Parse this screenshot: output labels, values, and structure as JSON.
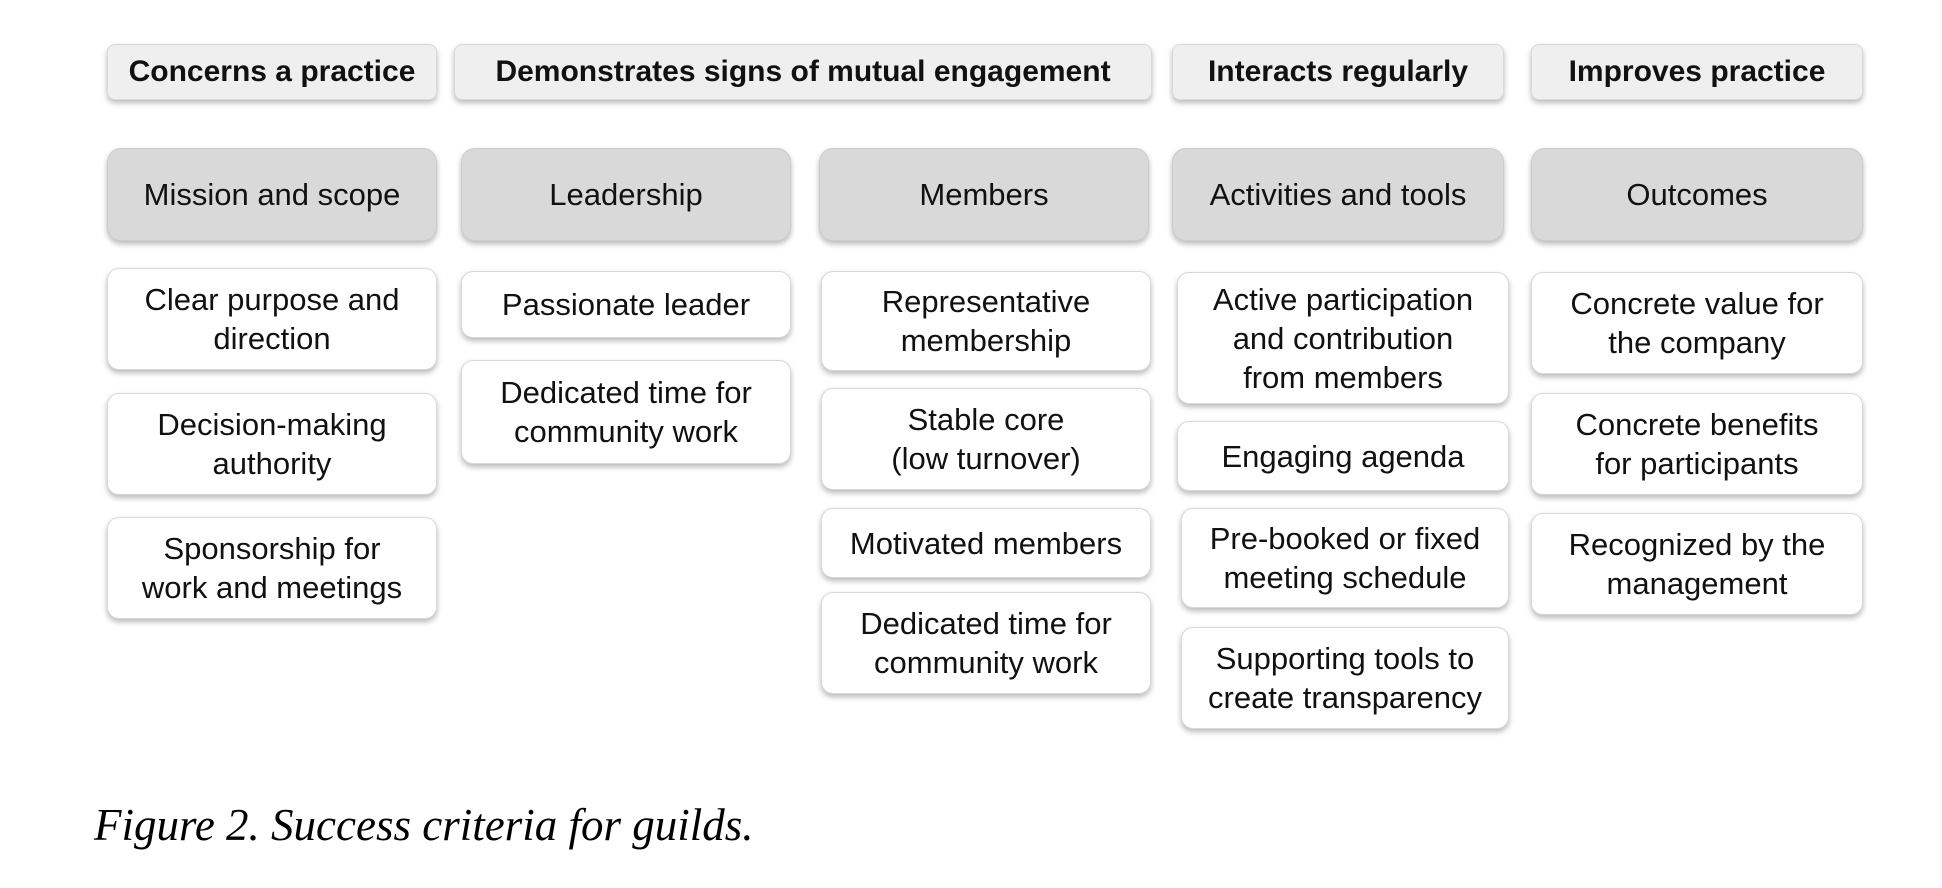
{
  "criteria": [
    "Concerns a practice",
    "Demonstrates signs of mutual engagement",
    "Interacts regularly",
    "Improves practice"
  ],
  "columns": [
    {
      "category": "Mission and scope",
      "items": [
        [
          "Clear purpose and",
          "direction"
        ],
        [
          "Decision-making",
          "authority"
        ],
        [
          "Sponsorship for",
          "work and meetings"
        ]
      ]
    },
    {
      "category": "Leadership",
      "items": [
        [
          "Passionate leader"
        ],
        [
          "Dedicated time for",
          "community work"
        ]
      ]
    },
    {
      "category": "Members",
      "items": [
        [
          "Representative",
          "membership"
        ],
        [
          "Stable core",
          "(low turnover)"
        ],
        [
          "Motivated members"
        ],
        [
          "Dedicated time for",
          "community work"
        ]
      ]
    },
    {
      "category": "Activities and tools",
      "items": [
        [
          "Active participation",
          "and contribution",
          "from members"
        ],
        [
          "Engaging agenda"
        ],
        [
          "Pre-booked or fixed",
          "meeting schedule"
        ],
        [
          "Supporting tools to",
          "create transparency"
        ]
      ]
    },
    {
      "category": "Outcomes",
      "items": [
        [
          "Concrete value for",
          "the company"
        ],
        [
          "Concrete benefits",
          "for participants"
        ],
        [
          "Recognized by the",
          "management"
        ]
      ]
    }
  ],
  "caption": "Figure 2. Success criteria for guilds."
}
